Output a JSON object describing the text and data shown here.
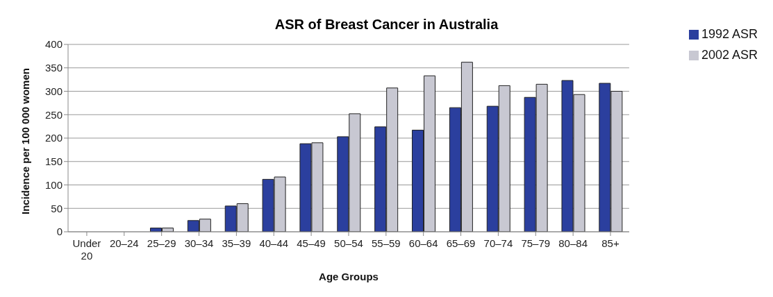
{
  "chart_data": {
    "type": "bar",
    "title": "ASR of Breast Cancer in Australia",
    "xlabel": "Age Groups",
    "ylabel": "Incidence per 100 000 women",
    "categories": [
      "Under 20",
      "20–24",
      "25–29",
      "30–34",
      "35–39",
      "40–44",
      "45–49",
      "50–54",
      "55–59",
      "60–64",
      "65–69",
      "70–74",
      "75–79",
      "80–84",
      "85+"
    ],
    "series": [
      {
        "name": "1992 ASR",
        "color": "#2b3f9e",
        "values": [
          0,
          null,
          8,
          24,
          55,
          112,
          188,
          203,
          224,
          217,
          265,
          268,
          287,
          323,
          317
        ]
      },
      {
        "name": "2002 ASR",
        "color": "#c8c8d2",
        "values": [
          0,
          null,
          8,
          27,
          60,
          117,
          190,
          252,
          307,
          333,
          362,
          312,
          315,
          293,
          300
        ]
      }
    ],
    "ylim": [
      0,
      400
    ],
    "yticks": [
      0,
      50,
      100,
      150,
      200,
      250,
      300,
      350,
      400
    ],
    "grid": "y",
    "legend": "top right"
  }
}
